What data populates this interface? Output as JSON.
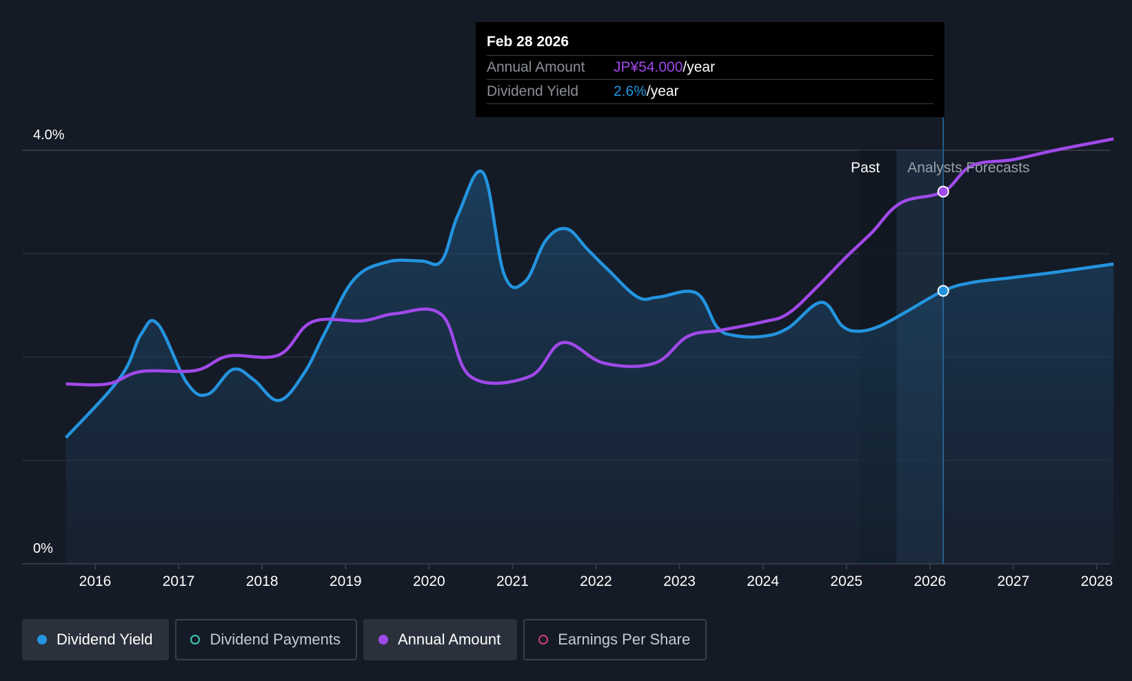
{
  "chart_data": {
    "type": "line",
    "title": "",
    "x_tick_labels": [
      "2016",
      "2017",
      "2018",
      "2019",
      "2020",
      "2021",
      "2022",
      "2023",
      "2024",
      "2025",
      "2026",
      "2027",
      "2028"
    ],
    "y_tick_labels": [
      "4.0%",
      "0%"
    ],
    "ylim": [
      0,
      4.0
    ],
    "xlim": [
      2015.65,
      2028.2
    ],
    "grid": true,
    "regions": {
      "past_label": "Past",
      "forecast_label": "Analysts Forecasts",
      "forecast_start": 2025.6,
      "hover_x": 2026.16
    },
    "series": [
      {
        "name": "Dividend Yield",
        "unit": "%",
        "color": "#2394df",
        "x": [
          2015.65,
          2016.3,
          2016.55,
          2016.75,
          2017.1,
          2017.35,
          2017.65,
          2017.9,
          2018.2,
          2018.5,
          2018.75,
          2019.1,
          2019.5,
          2019.9,
          2020.15,
          2020.35,
          2020.65,
          2020.9,
          2021.15,
          2021.4,
          2021.65,
          2021.9,
          2022.15,
          2022.5,
          2022.75,
          2023.2,
          2023.45,
          2023.65,
          2024.0,
          2024.3,
          2024.7,
          2024.95,
          2025.15,
          2025.4,
          2025.7,
          2026.16,
          2026.5,
          2027.0,
          2027.5,
          2028.2
        ],
        "values": [
          1.22,
          1.8,
          2.22,
          2.32,
          1.75,
          1.64,
          1.88,
          1.78,
          1.58,
          1.84,
          2.23,
          2.75,
          2.92,
          2.93,
          2.93,
          3.38,
          3.78,
          2.8,
          2.73,
          3.13,
          3.24,
          3.04,
          2.84,
          2.58,
          2.58,
          2.62,
          2.29,
          2.21,
          2.2,
          2.28,
          2.53,
          2.3,
          2.25,
          2.3,
          2.43,
          2.64,
          2.72,
          2.77,
          2.82,
          2.9
        ]
      },
      {
        "name": "Annual Amount",
        "unit": "JPY",
        "color": "#a049ea",
        "x": [
          2015.65,
          2016.15,
          2016.55,
          2017.2,
          2017.6,
          2018.2,
          2018.6,
          2019.2,
          2019.6,
          2020.15,
          2020.5,
          2021.2,
          2021.6,
          2022.1,
          2022.7,
          2023.1,
          2023.5,
          2024.0,
          2024.3,
          2024.65,
          2025.0,
          2025.3,
          2025.65,
          2026.16,
          2026.5,
          2027.0,
          2027.5,
          2028.2
        ],
        "values": [
          1.74,
          1.74,
          1.86,
          1.87,
          2.01,
          2.02,
          2.34,
          2.35,
          2.42,
          2.41,
          1.81,
          1.81,
          2.14,
          1.94,
          1.94,
          2.2,
          2.26,
          2.34,
          2.42,
          2.68,
          2.97,
          3.2,
          3.49,
          3.6,
          3.85,
          3.91,
          4.0,
          4.11
        ]
      }
    ],
    "tooltip": {
      "date": "Feb 28 2026",
      "rows": [
        {
          "label": "Annual Amount",
          "value": "JP¥54.000",
          "suffix": "/year",
          "color": "#a049ea"
        },
        {
          "label": "Dividend Yield",
          "value": "2.6%",
          "suffix": "/year",
          "color": "#2394df"
        }
      ]
    },
    "legend": [
      {
        "label": "Dividend Yield",
        "color": "#2394df",
        "filled": true,
        "active": true
      },
      {
        "label": "Dividend Payments",
        "color": "#3ec9b8",
        "filled": false,
        "active": false
      },
      {
        "label": "Annual Amount",
        "color": "#a049ea",
        "filled": true,
        "active": true
      },
      {
        "label": "Earnings Per Share",
        "color": "#d23e7f",
        "filled": false,
        "active": false
      }
    ]
  }
}
